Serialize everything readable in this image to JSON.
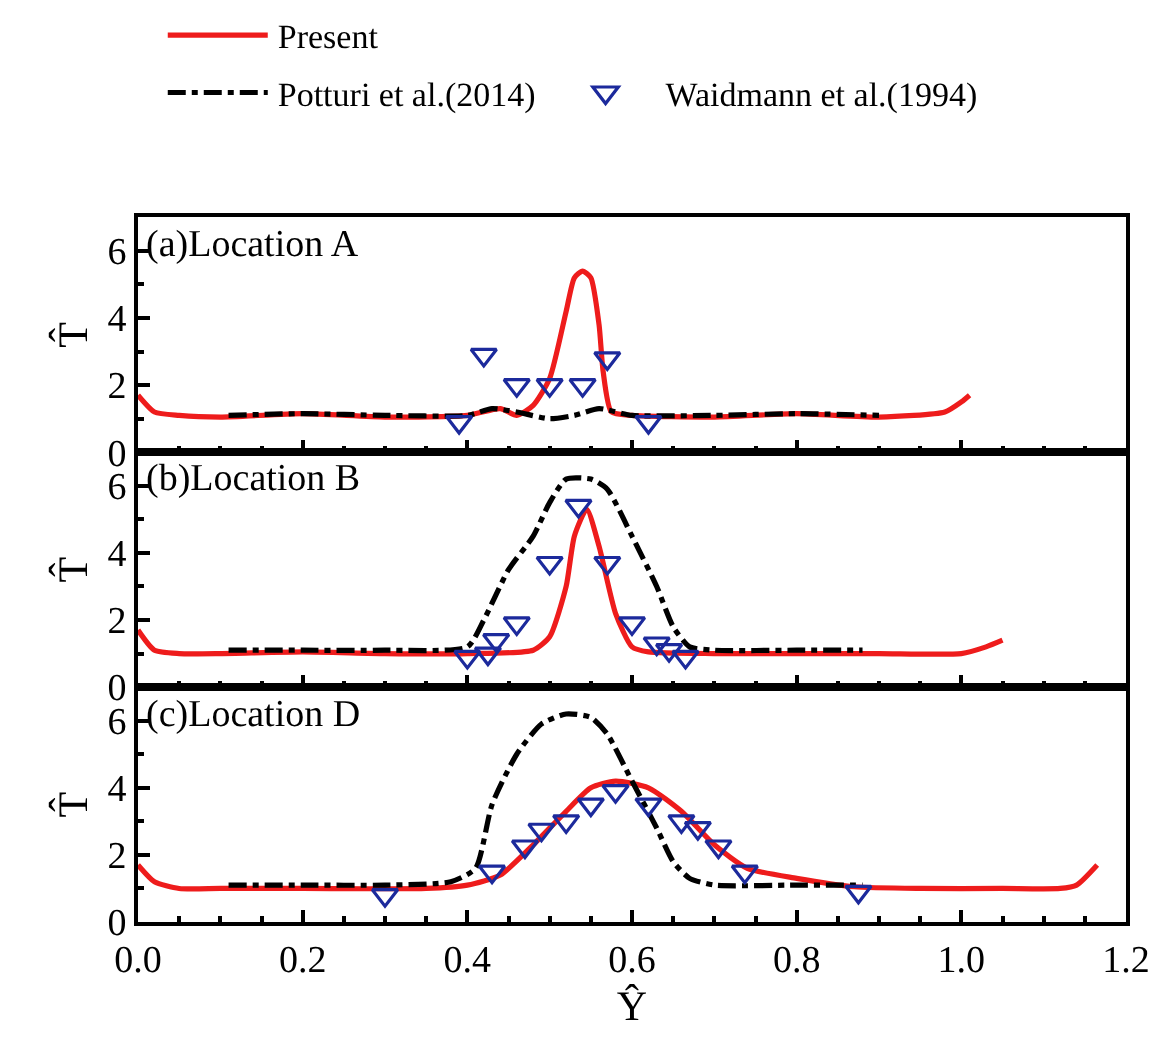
{
  "chart_data": [
    {
      "type": "line",
      "ylabel": "T̂",
      "annotations": [
        "(a)Location A"
      ],
      "legend": "top",
      "tick_labels": "y",
      "grid": false,
      "xlim": [
        0,
        1.2
      ],
      "xticks": [
        0,
        0.2,
        0.4,
        0.6,
        0.8,
        1.0,
        1.2
      ],
      "ylim": [
        0,
        7
      ],
      "yticks": [
        0,
        2,
        4,
        6
      ],
      "series": [
        {
          "name": "Present",
          "color": "#ee1c1c",
          "line_style": "solid",
          "marker": "none",
          "x": [
            0,
            0.02,
            0.05,
            0.1,
            0.2,
            0.3,
            0.4,
            0.44,
            0.46,
            0.48,
            0.5,
            0.52,
            0.53,
            0.54,
            0.55,
            0.56,
            0.565,
            0.575,
            0.6,
            0.7,
            0.8,
            0.9,
            0.98,
            1.0,
            1.01
          ],
          "values": [
            1.7,
            1.2,
            1.1,
            1.05,
            1.15,
            1.05,
            1.1,
            1.3,
            1.1,
            1.4,
            2.2,
            4.2,
            5.2,
            5.4,
            5.2,
            3.8,
            2.4,
            1.2,
            1.1,
            1.05,
            1.15,
            1.05,
            1.2,
            1.5,
            1.7
          ]
        },
        {
          "name": "Potturi et al.(2014)",
          "color": "#000000",
          "line_style": "dashdot",
          "marker": "none",
          "x": [
            0.11,
            0.2,
            0.3,
            0.4,
            0.43,
            0.46,
            0.5,
            0.53,
            0.56,
            0.6,
            0.7,
            0.8,
            0.9
          ],
          "values": [
            1.1,
            1.15,
            1.1,
            1.1,
            1.3,
            1.2,
            1.0,
            1.1,
            1.3,
            1.1,
            1.1,
            1.15,
            1.1
          ]
        },
        {
          "name": "Waidmann et al.(1994)",
          "type": "scatter",
          "color": "#1c2a9c",
          "marker": "triangle-down",
          "x": [
            0.39,
            0.42,
            0.46,
            0.5,
            0.54,
            0.57,
            0.62
          ],
          "values": [
            0.9,
            2.9,
            2.0,
            2.0,
            2.0,
            2.8,
            0.9
          ]
        }
      ]
    },
    {
      "type": "line",
      "ylabel": "T̂",
      "annotations": [
        "(b)Location B"
      ],
      "legend": false,
      "tick_labels": "y",
      "grid": false,
      "xlim": [
        0,
        1.2
      ],
      "xticks": [
        0,
        0.2,
        0.4,
        0.6,
        0.8,
        1.0,
        1.2
      ],
      "ylim": [
        0,
        7
      ],
      "yticks": [
        0,
        2,
        4,
        6
      ],
      "series": [
        {
          "color": "#ee1c1c",
          "line_style": "solid",
          "marker": "none",
          "x": [
            0,
            0.02,
            0.05,
            0.1,
            0.2,
            0.3,
            0.4,
            0.48,
            0.5,
            0.52,
            0.53,
            0.545,
            0.56,
            0.58,
            0.6,
            0.62,
            0.7,
            0.8,
            0.9,
            1.0,
            1.03,
            1.05
          ],
          "values": [
            1.7,
            1.1,
            1.0,
            1.0,
            1.05,
            1.0,
            1.0,
            1.1,
            1.5,
            3.0,
            4.5,
            5.3,
            4.2,
            2.2,
            1.2,
            1.05,
            1.0,
            1.0,
            1.0,
            1.0,
            1.2,
            1.4
          ]
        },
        {
          "color": "#000000",
          "line_style": "dashdot",
          "marker": "none",
          "x": [
            0.11,
            0.2,
            0.3,
            0.4,
            0.42,
            0.45,
            0.48,
            0.5,
            0.52,
            0.55,
            0.57,
            0.6,
            0.63,
            0.65,
            0.67,
            0.7,
            0.8,
            0.88
          ],
          "values": [
            1.1,
            1.1,
            1.1,
            1.2,
            2.0,
            3.5,
            4.5,
            5.5,
            6.2,
            6.2,
            5.9,
            4.5,
            3.0,
            1.8,
            1.2,
            1.1,
            1.1,
            1.1
          ]
        },
        {
          "type": "scatter",
          "color": "#1c2a9c",
          "marker": "triangle-down",
          "x": [
            0.4,
            0.425,
            0.435,
            0.46,
            0.5,
            0.535,
            0.57,
            0.6,
            0.63,
            0.645,
            0.665
          ],
          "values": [
            0.9,
            1.0,
            1.4,
            1.9,
            3.7,
            5.4,
            3.7,
            1.9,
            1.3,
            1.1,
            0.9
          ]
        }
      ]
    },
    {
      "type": "line",
      "ylabel": "T̂",
      "xlabel": "Ŷ",
      "annotations": [
        "(c)Location D"
      ],
      "legend": false,
      "grid": false,
      "xlim": [
        0,
        1.2
      ],
      "xticks": [
        {
          "value": 0,
          "label": "0.0"
        },
        {
          "value": 0.2,
          "label": "0.2"
        },
        {
          "value": 0.4,
          "label": "0.4"
        },
        {
          "value": 0.6,
          "label": "0.6"
        },
        {
          "value": 0.8,
          "label": "0.8"
        },
        {
          "value": 1.0,
          "label": "1.0"
        },
        {
          "value": 1.2,
          "label": "1.2"
        }
      ],
      "ylim": [
        0,
        7
      ],
      "yticks": [
        0,
        2,
        4,
        6
      ],
      "series": [
        {
          "color": "#ee1c1c",
          "line_style": "solid",
          "marker": "none",
          "x": [
            0,
            0.02,
            0.05,
            0.1,
            0.2,
            0.35,
            0.4,
            0.44,
            0.48,
            0.52,
            0.55,
            0.58,
            0.62,
            0.66,
            0.7,
            0.74,
            0.8,
            0.87,
            0.95,
            1.05,
            1.12,
            1.14,
            1.165
          ],
          "values": [
            1.7,
            1.2,
            1.0,
            1.0,
            1.0,
            1.0,
            1.1,
            1.4,
            2.3,
            3.3,
            4.0,
            4.2,
            4.0,
            3.3,
            2.3,
            1.6,
            1.3,
            1.05,
            1.0,
            1.0,
            1.0,
            1.1,
            1.7
          ]
        },
        {
          "color": "#000000",
          "line_style": "dashdot",
          "marker": "none",
          "x": [
            0.11,
            0.2,
            0.3,
            0.38,
            0.41,
            0.43,
            0.46,
            0.49,
            0.52,
            0.55,
            0.57,
            0.6,
            0.63,
            0.65,
            0.67,
            0.7,
            0.8,
            0.88
          ],
          "values": [
            1.1,
            1.1,
            1.1,
            1.2,
            1.6,
            3.5,
            5.0,
            5.9,
            6.2,
            6.1,
            5.6,
            4.2,
            2.8,
            1.8,
            1.3,
            1.1,
            1.1,
            1.1
          ]
        },
        {
          "type": "scatter",
          "color": "#1c2a9c",
          "marker": "triangle-down",
          "x": [
            0.3,
            0.43,
            0.47,
            0.49,
            0.52,
            0.55,
            0.58,
            0.62,
            0.66,
            0.68,
            0.705,
            0.737,
            0.875
          ],
          "values": [
            0.8,
            1.5,
            2.25,
            2.75,
            3.0,
            3.5,
            3.9,
            3.5,
            3.0,
            2.8,
            2.25,
            1.5,
            0.9
          ]
        }
      ]
    }
  ]
}
